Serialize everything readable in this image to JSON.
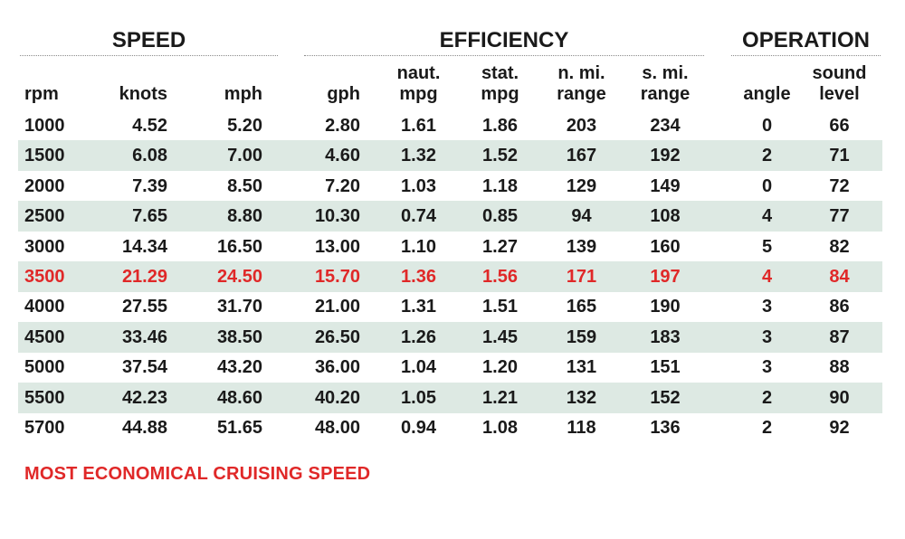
{
  "groups": {
    "speed": "SPEED",
    "efficiency": "EFFICIENCY",
    "operation": "OPERATION"
  },
  "headers": {
    "rpm": "rpm",
    "knots": "knots",
    "mph": "mph",
    "gph": "gph",
    "naut_mpg": "naut.\nmpg",
    "stat_mpg": "stat.\nmpg",
    "n_mi_range": "n. mi.\nrange",
    "s_mi_range": "s. mi.\nrange",
    "angle": "angle",
    "sound_level": "sound\nlevel"
  },
  "rows": [
    {
      "rpm": "1000",
      "knots": "4.52",
      "mph": "5.20",
      "gph": "2.80",
      "naut_mpg": "1.61",
      "stat_mpg": "1.86",
      "n_mi_range": "203",
      "s_mi_range": "234",
      "angle": "0",
      "sound_level": "66"
    },
    {
      "rpm": "1500",
      "knots": "6.08",
      "mph": "7.00",
      "gph": "4.60",
      "naut_mpg": "1.32",
      "stat_mpg": "1.52",
      "n_mi_range": "167",
      "s_mi_range": "192",
      "angle": "2",
      "sound_level": "71"
    },
    {
      "rpm": "2000",
      "knots": "7.39",
      "mph": "8.50",
      "gph": "7.20",
      "naut_mpg": "1.03",
      "stat_mpg": "1.18",
      "n_mi_range": "129",
      "s_mi_range": "149",
      "angle": "0",
      "sound_level": "72"
    },
    {
      "rpm": "2500",
      "knots": "7.65",
      "mph": "8.80",
      "gph": "10.30",
      "naut_mpg": "0.74",
      "stat_mpg": "0.85",
      "n_mi_range": "94",
      "s_mi_range": "108",
      "angle": "4",
      "sound_level": "77"
    },
    {
      "rpm": "3000",
      "knots": "14.34",
      "mph": "16.50",
      "gph": "13.00",
      "naut_mpg": "1.10",
      "stat_mpg": "1.27",
      "n_mi_range": "139",
      "s_mi_range": "160",
      "angle": "5",
      "sound_level": "82"
    },
    {
      "rpm": "3500",
      "knots": "21.29",
      "mph": "24.50",
      "gph": "15.70",
      "naut_mpg": "1.36",
      "stat_mpg": "1.56",
      "n_mi_range": "171",
      "s_mi_range": "197",
      "angle": "4",
      "sound_level": "84"
    },
    {
      "rpm": "4000",
      "knots": "27.55",
      "mph": "31.70",
      "gph": "21.00",
      "naut_mpg": "1.31",
      "stat_mpg": "1.51",
      "n_mi_range": "165",
      "s_mi_range": "190",
      "angle": "3",
      "sound_level": "86"
    },
    {
      "rpm": "4500",
      "knots": "33.46",
      "mph": "38.50",
      "gph": "26.50",
      "naut_mpg": "1.26",
      "stat_mpg": "1.45",
      "n_mi_range": "159",
      "s_mi_range": "183",
      "angle": "3",
      "sound_level": "87"
    },
    {
      "rpm": "5000",
      "knots": "37.54",
      "mph": "43.20",
      "gph": "36.00",
      "naut_mpg": "1.04",
      "stat_mpg": "1.20",
      "n_mi_range": "131",
      "s_mi_range": "151",
      "angle": "3",
      "sound_level": "88"
    },
    {
      "rpm": "5500",
      "knots": "42.23",
      "mph": "48.60",
      "gph": "40.20",
      "naut_mpg": "1.05",
      "stat_mpg": "1.21",
      "n_mi_range": "132",
      "s_mi_range": "152",
      "angle": "2",
      "sound_level": "90"
    },
    {
      "rpm": "5700",
      "knots": "44.88",
      "mph": "51.65",
      "gph": "48.00",
      "naut_mpg": "0.94",
      "stat_mpg": "1.08",
      "n_mi_range": "118",
      "s_mi_range": "136",
      "angle": "2",
      "sound_level": "92"
    }
  ],
  "highlight_rpm": "3500",
  "footnote": "MOST ECONOMICAL CRUISING SPEED",
  "colors": {
    "highlight": "#e02828",
    "row_shade": "#dde9e3",
    "text": "#1a1a1a"
  }
}
